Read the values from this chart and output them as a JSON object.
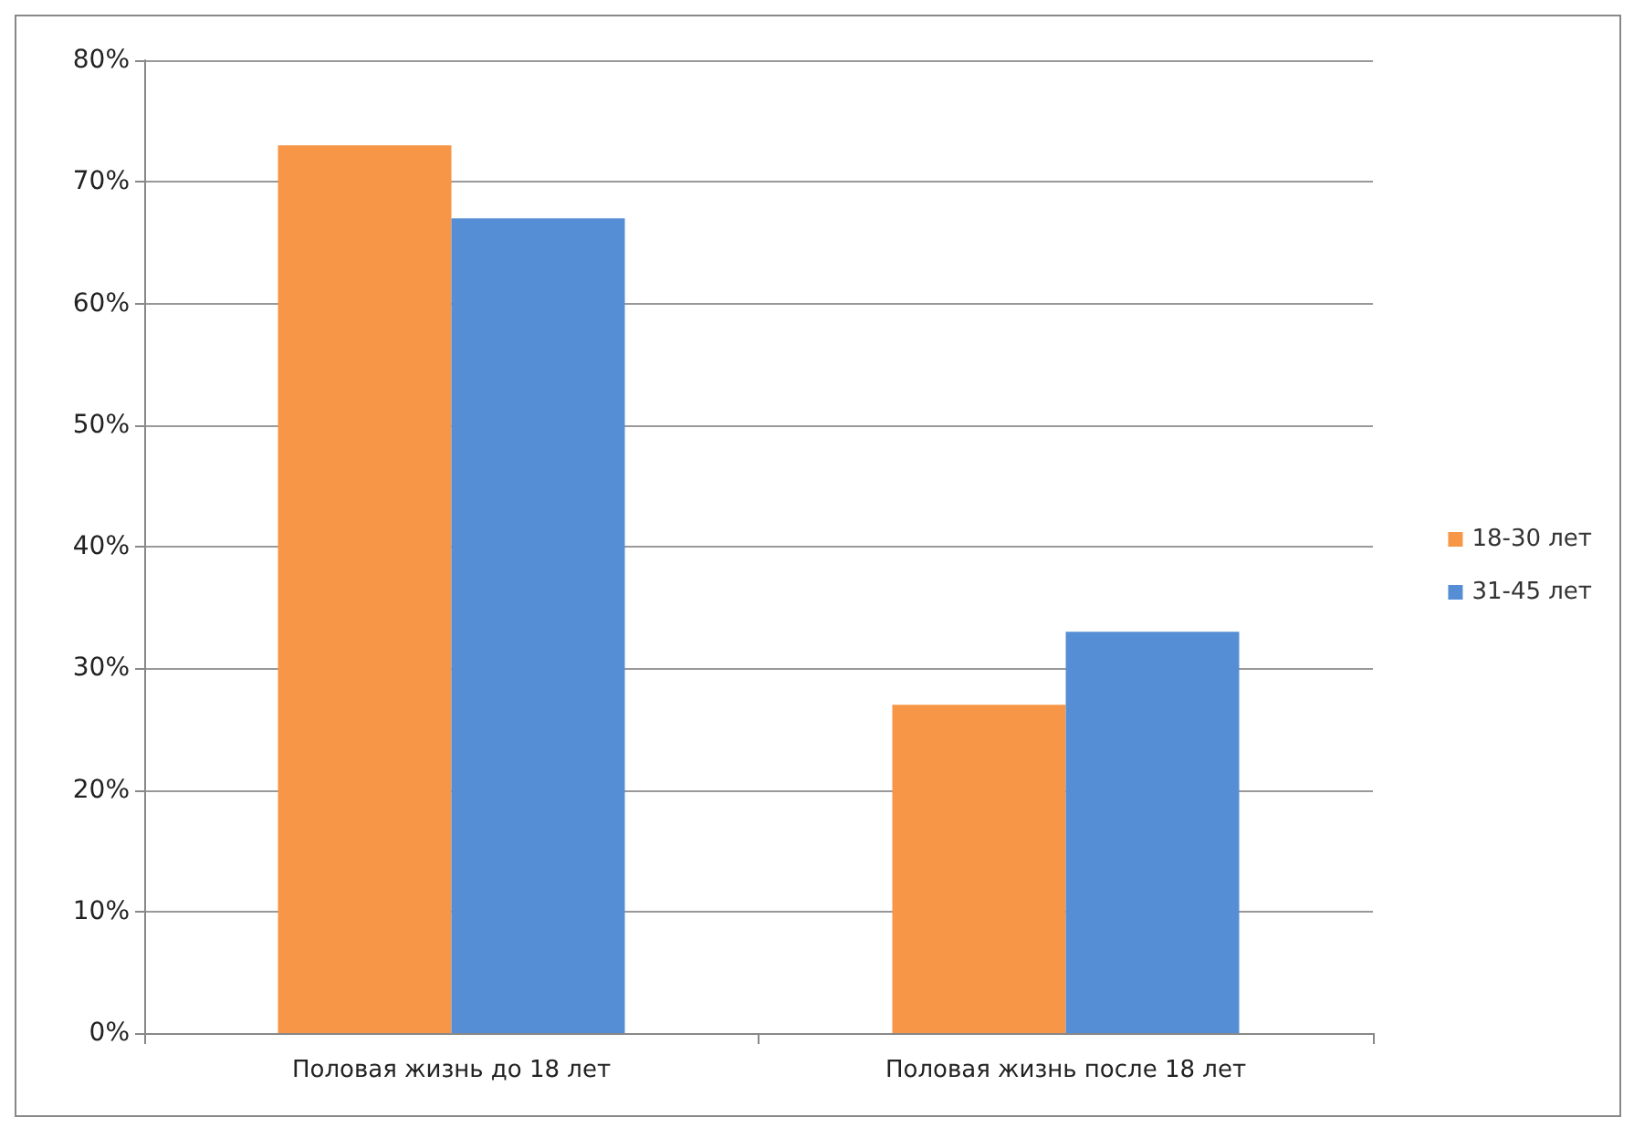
{
  "chart_data": {
    "type": "bar",
    "categories": [
      "Половая жизнь до 18 лет",
      "Половая жизнь после 18 лет"
    ],
    "series": [
      {
        "name": "18-30 лет",
        "color": "#f79646",
        "values": [
          73,
          27
        ]
      },
      {
        "name": "31-45 лет",
        "color": "#558ed5",
        "values": [
          67,
          33
        ]
      }
    ],
    "ylim": [
      0,
      80
    ],
    "yticks": [
      {
        "value": 0,
        "label": "0%"
      },
      {
        "value": 10,
        "label": "10%"
      },
      {
        "value": 20,
        "label": "20%"
      },
      {
        "value": 30,
        "label": "30%"
      },
      {
        "value": 40,
        "label": "40%"
      },
      {
        "value": 50,
        "label": "50%"
      },
      {
        "value": 60,
        "label": "60%"
      },
      {
        "value": 70,
        "label": "70%"
      },
      {
        "value": 80,
        "label": "80%"
      }
    ],
    "grid": "y",
    "legend": "right"
  }
}
